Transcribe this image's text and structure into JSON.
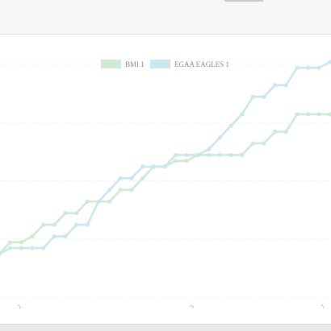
{
  "chart_data": {
    "type": "line",
    "x": [
      1,
      2,
      3,
      4,
      5,
      6,
      7,
      8,
      9,
      10,
      11,
      12,
      13,
      14,
      15,
      16,
      17,
      18,
      19,
      20,
      21,
      22,
      23,
      24,
      25,
      26,
      27,
      28,
      29,
      30,
      31
    ],
    "series": [
      {
        "name": "BMI 1",
        "color": "#cfe9d2",
        "values": [
          8,
          10,
          10,
          11,
          13,
          13,
          15,
          15,
          17,
          17,
          17,
          19,
          19,
          21,
          23,
          23,
          24,
          24,
          25,
          25,
          25,
          25,
          25,
          27,
          27,
          29,
          29,
          32,
          32,
          32,
          32
        ]
      },
      {
        "name": "EGAA EAGLES 1",
        "color": "#cbe6ee",
        "values": [
          8,
          9,
          9,
          9,
          9,
          11,
          11,
          13,
          13,
          17,
          19,
          21,
          21,
          23,
          23,
          23,
          25,
          25,
          25,
          26,
          28,
          30,
          32,
          35,
          35,
          37,
          37,
          40,
          40,
          40,
          41
        ]
      }
    ],
    "ylim": [
      0,
      45
    ],
    "grid": true,
    "legend": "top-center",
    "tick_labels": [
      "2",
      "5",
      "7"
    ]
  }
}
